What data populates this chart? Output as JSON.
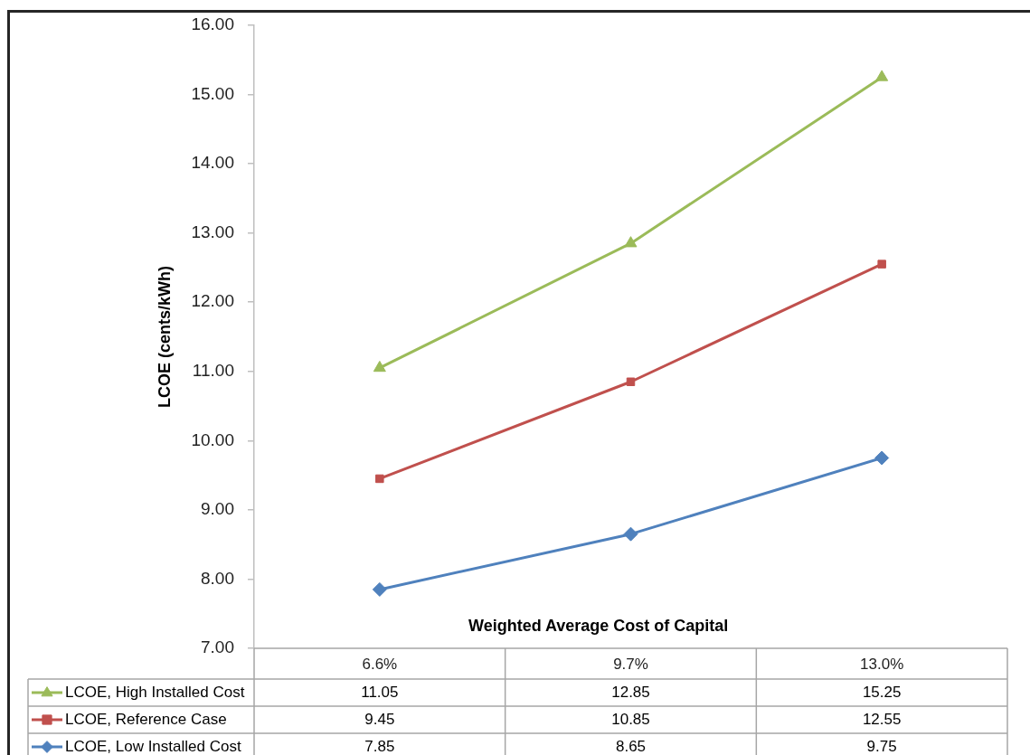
{
  "chart_data": {
    "type": "line",
    "xlabel": "Weighted Average Cost of Capital",
    "ylabel": "LCOE (cents/kWh)",
    "categories": [
      "6.6%",
      "9.7%",
      "13.0%"
    ],
    "series": [
      {
        "name": "LCOE, High Installed Cost",
        "color": "#9bbb59",
        "marker": "triangle",
        "values": [
          11.05,
          12.85,
          15.25
        ]
      },
      {
        "name": "LCOE, Reference Case",
        "color": "#c0504d",
        "marker": "square",
        "values": [
          9.45,
          10.85,
          12.55
        ]
      },
      {
        "name": "LCOE, Low Installed Cost",
        "color": "#4f81bd",
        "marker": "diamond",
        "values": [
          7.85,
          8.65,
          9.75
        ]
      }
    ],
    "ylim": [
      7,
      16
    ],
    "yticks": [
      {
        "value": 7,
        "label": "7.00"
      },
      {
        "value": 8,
        "label": "8.00"
      },
      {
        "value": 9,
        "label": "9.00"
      },
      {
        "value": 10,
        "label": "10.00"
      },
      {
        "value": 11,
        "label": "11.00"
      },
      {
        "value": 12,
        "label": "12.00"
      },
      {
        "value": 13,
        "label": "13.00"
      },
      {
        "value": 14,
        "label": "14.00"
      },
      {
        "value": 15,
        "label": "15.00"
      },
      {
        "value": 16,
        "label": "16.00"
      }
    ],
    "legend": "bottom",
    "data_labels": true
  }
}
